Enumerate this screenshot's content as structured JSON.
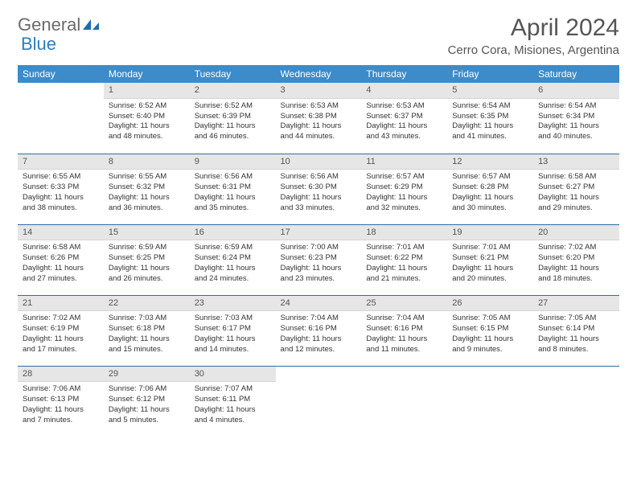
{
  "brand": {
    "part1": "General",
    "part2": "Blue"
  },
  "title": "April 2024",
  "location": "Cerro Cora, Misiones, Argentina",
  "colors": {
    "header_bg": "#3d8bc9",
    "header_fg": "#ffffff",
    "daynum_bg": "#e6e6e6",
    "row_border": "#2a6ea8",
    "text": "#333333",
    "title_color": "#555555"
  },
  "weekdays": [
    "Sunday",
    "Monday",
    "Tuesday",
    "Wednesday",
    "Thursday",
    "Friday",
    "Saturday"
  ],
  "weeks": [
    [
      {
        "empty": true
      },
      {
        "n": "1",
        "sr": "Sunrise: 6:52 AM",
        "ss": "Sunset: 6:40 PM",
        "d1": "Daylight: 11 hours",
        "d2": "and 48 minutes."
      },
      {
        "n": "2",
        "sr": "Sunrise: 6:52 AM",
        "ss": "Sunset: 6:39 PM",
        "d1": "Daylight: 11 hours",
        "d2": "and 46 minutes."
      },
      {
        "n": "3",
        "sr": "Sunrise: 6:53 AM",
        "ss": "Sunset: 6:38 PM",
        "d1": "Daylight: 11 hours",
        "d2": "and 44 minutes."
      },
      {
        "n": "4",
        "sr": "Sunrise: 6:53 AM",
        "ss": "Sunset: 6:37 PM",
        "d1": "Daylight: 11 hours",
        "d2": "and 43 minutes."
      },
      {
        "n": "5",
        "sr": "Sunrise: 6:54 AM",
        "ss": "Sunset: 6:35 PM",
        "d1": "Daylight: 11 hours",
        "d2": "and 41 minutes."
      },
      {
        "n": "6",
        "sr": "Sunrise: 6:54 AM",
        "ss": "Sunset: 6:34 PM",
        "d1": "Daylight: 11 hours",
        "d2": "and 40 minutes."
      }
    ],
    [
      {
        "n": "7",
        "sr": "Sunrise: 6:55 AM",
        "ss": "Sunset: 6:33 PM",
        "d1": "Daylight: 11 hours",
        "d2": "and 38 minutes."
      },
      {
        "n": "8",
        "sr": "Sunrise: 6:55 AM",
        "ss": "Sunset: 6:32 PM",
        "d1": "Daylight: 11 hours",
        "d2": "and 36 minutes."
      },
      {
        "n": "9",
        "sr": "Sunrise: 6:56 AM",
        "ss": "Sunset: 6:31 PM",
        "d1": "Daylight: 11 hours",
        "d2": "and 35 minutes."
      },
      {
        "n": "10",
        "sr": "Sunrise: 6:56 AM",
        "ss": "Sunset: 6:30 PM",
        "d1": "Daylight: 11 hours",
        "d2": "and 33 minutes."
      },
      {
        "n": "11",
        "sr": "Sunrise: 6:57 AM",
        "ss": "Sunset: 6:29 PM",
        "d1": "Daylight: 11 hours",
        "d2": "and 32 minutes."
      },
      {
        "n": "12",
        "sr": "Sunrise: 6:57 AM",
        "ss": "Sunset: 6:28 PM",
        "d1": "Daylight: 11 hours",
        "d2": "and 30 minutes."
      },
      {
        "n": "13",
        "sr": "Sunrise: 6:58 AM",
        "ss": "Sunset: 6:27 PM",
        "d1": "Daylight: 11 hours",
        "d2": "and 29 minutes."
      }
    ],
    [
      {
        "n": "14",
        "sr": "Sunrise: 6:58 AM",
        "ss": "Sunset: 6:26 PM",
        "d1": "Daylight: 11 hours",
        "d2": "and 27 minutes."
      },
      {
        "n": "15",
        "sr": "Sunrise: 6:59 AM",
        "ss": "Sunset: 6:25 PM",
        "d1": "Daylight: 11 hours",
        "d2": "and 26 minutes."
      },
      {
        "n": "16",
        "sr": "Sunrise: 6:59 AM",
        "ss": "Sunset: 6:24 PM",
        "d1": "Daylight: 11 hours",
        "d2": "and 24 minutes."
      },
      {
        "n": "17",
        "sr": "Sunrise: 7:00 AM",
        "ss": "Sunset: 6:23 PM",
        "d1": "Daylight: 11 hours",
        "d2": "and 23 minutes."
      },
      {
        "n": "18",
        "sr": "Sunrise: 7:01 AM",
        "ss": "Sunset: 6:22 PM",
        "d1": "Daylight: 11 hours",
        "d2": "and 21 minutes."
      },
      {
        "n": "19",
        "sr": "Sunrise: 7:01 AM",
        "ss": "Sunset: 6:21 PM",
        "d1": "Daylight: 11 hours",
        "d2": "and 20 minutes."
      },
      {
        "n": "20",
        "sr": "Sunrise: 7:02 AM",
        "ss": "Sunset: 6:20 PM",
        "d1": "Daylight: 11 hours",
        "d2": "and 18 minutes."
      }
    ],
    [
      {
        "n": "21",
        "sr": "Sunrise: 7:02 AM",
        "ss": "Sunset: 6:19 PM",
        "d1": "Daylight: 11 hours",
        "d2": "and 17 minutes."
      },
      {
        "n": "22",
        "sr": "Sunrise: 7:03 AM",
        "ss": "Sunset: 6:18 PM",
        "d1": "Daylight: 11 hours",
        "d2": "and 15 minutes."
      },
      {
        "n": "23",
        "sr": "Sunrise: 7:03 AM",
        "ss": "Sunset: 6:17 PM",
        "d1": "Daylight: 11 hours",
        "d2": "and 14 minutes."
      },
      {
        "n": "24",
        "sr": "Sunrise: 7:04 AM",
        "ss": "Sunset: 6:16 PM",
        "d1": "Daylight: 11 hours",
        "d2": "and 12 minutes."
      },
      {
        "n": "25",
        "sr": "Sunrise: 7:04 AM",
        "ss": "Sunset: 6:16 PM",
        "d1": "Daylight: 11 hours",
        "d2": "and 11 minutes."
      },
      {
        "n": "26",
        "sr": "Sunrise: 7:05 AM",
        "ss": "Sunset: 6:15 PM",
        "d1": "Daylight: 11 hours",
        "d2": "and 9 minutes."
      },
      {
        "n": "27",
        "sr": "Sunrise: 7:05 AM",
        "ss": "Sunset: 6:14 PM",
        "d1": "Daylight: 11 hours",
        "d2": "and 8 minutes."
      }
    ],
    [
      {
        "n": "28",
        "sr": "Sunrise: 7:06 AM",
        "ss": "Sunset: 6:13 PM",
        "d1": "Daylight: 11 hours",
        "d2": "and 7 minutes."
      },
      {
        "n": "29",
        "sr": "Sunrise: 7:06 AM",
        "ss": "Sunset: 6:12 PM",
        "d1": "Daylight: 11 hours",
        "d2": "and 5 minutes."
      },
      {
        "n": "30",
        "sr": "Sunrise: 7:07 AM",
        "ss": "Sunset: 6:11 PM",
        "d1": "Daylight: 11 hours",
        "d2": "and 4 minutes."
      },
      {
        "empty": true
      },
      {
        "empty": true
      },
      {
        "empty": true
      },
      {
        "empty": true
      }
    ]
  ]
}
